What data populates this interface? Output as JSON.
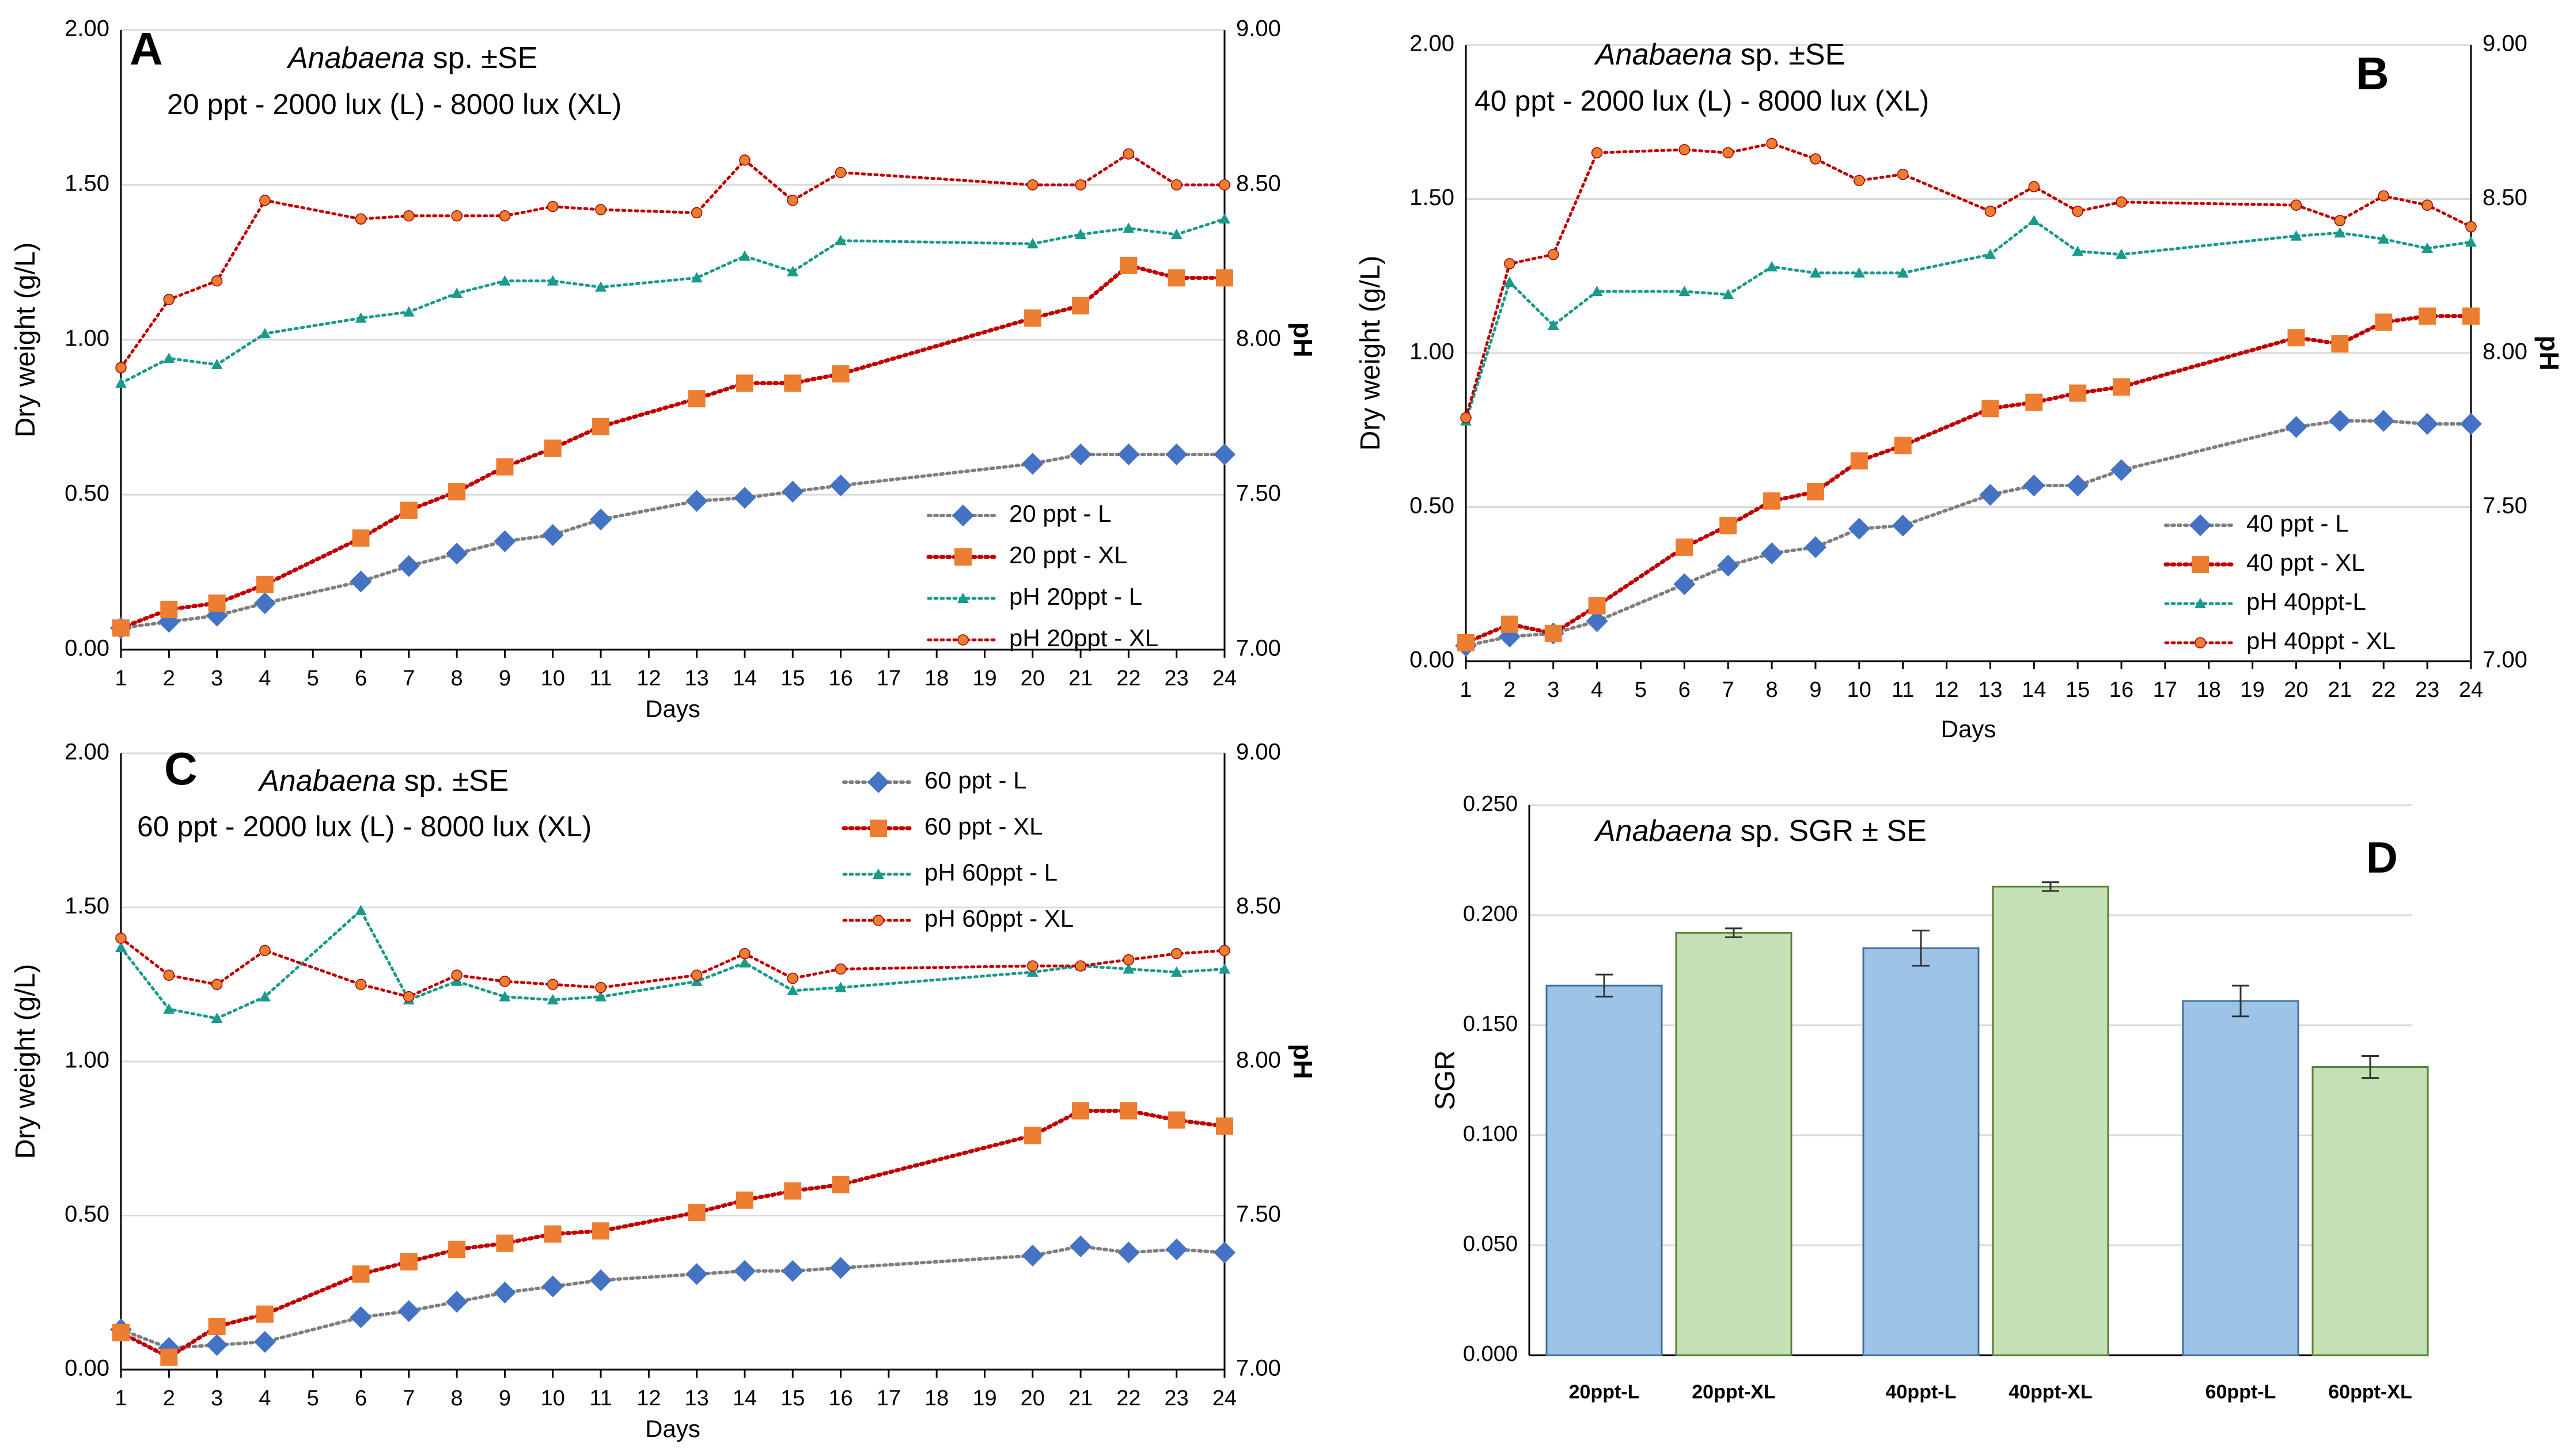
{
  "days": [
    1,
    2,
    3,
    4,
    5,
    6,
    7,
    8,
    9,
    10,
    11,
    12,
    13,
    14,
    15,
    16,
    17,
    18,
    19,
    20,
    21,
    22,
    23,
    24
  ],
  "common": {
    "xlabel": "Days",
    "ylabel_left": "Dry weight (g/L)",
    "ylabel_right": "pH",
    "left_ticks": [
      "0.00",
      "0.50",
      "1.00",
      "1.50",
      "2.00"
    ],
    "right_ticks": [
      "7.00",
      "7.50",
      "8.00",
      "8.50",
      "9.00"
    ],
    "tick_labels": [
      "1",
      "2",
      "3",
      "4",
      "5",
      "6",
      "7",
      "8",
      "9",
      "10",
      "11",
      "12",
      "13",
      "14",
      "15",
      "16",
      "17",
      "18",
      "19",
      "20",
      "21",
      "22",
      "23",
      "24"
    ]
  },
  "colors": {
    "blue": "#4472c4",
    "orange": "#ed7d31",
    "darkred": "#c00000",
    "teal": "#1a9a8a",
    "gray": "#7f7f7f",
    "bar_blue": "#9dc3e6",
    "bar_green": "#c5e0b4",
    "grid": "#d9d9d9"
  },
  "chart_data": [
    {
      "type": "line",
      "letter": "A",
      "title_italic": "Anabaena",
      "title_rest": " sp. ±SE",
      "subtitle": "20 ppt - 2000 lux (L) - 8000 lux (XL)",
      "xlabel": "Days",
      "ylabel": "Dry weight (g/L)",
      "y2label": "pH",
      "ylim": [
        0,
        2
      ],
      "y2lim": [
        7,
        9
      ],
      "series": [
        {
          "name": "20 ppt - L",
          "axis": "left",
          "x": [
            1,
            2,
            3,
            4,
            6,
            7,
            8,
            9,
            10,
            11,
            13,
            14,
            15,
            16,
            20,
            21,
            22,
            23,
            24
          ],
          "values": [
            0.07,
            0.09,
            0.11,
            0.15,
            0.22,
            0.27,
            0.31,
            0.35,
            0.37,
            0.42,
            0.48,
            0.49,
            0.51,
            0.53,
            0.6,
            0.63,
            0.63,
            0.63,
            0.63
          ]
        },
        {
          "name": "20 ppt - XL",
          "axis": "left",
          "x": [
            1,
            2,
            3,
            4,
            6,
            7,
            8,
            9,
            10,
            11,
            13,
            14,
            15,
            16,
            20,
            21,
            22,
            23,
            24
          ],
          "values": [
            0.07,
            0.13,
            0.15,
            0.21,
            0.36,
            0.45,
            0.51,
            0.59,
            0.65,
            0.72,
            0.81,
            0.86,
            0.86,
            0.89,
            1.07,
            1.11,
            1.24,
            1.2,
            1.2
          ]
        },
        {
          "name": "pH 20ppt - L",
          "axis": "right",
          "x": [
            1,
            2,
            3,
            4,
            6,
            7,
            8,
            9,
            10,
            11,
            13,
            14,
            15,
            16,
            20,
            21,
            22,
            23,
            24
          ],
          "values": [
            7.86,
            7.94,
            7.92,
            8.02,
            8.07,
            8.09,
            8.15,
            8.19,
            8.19,
            8.17,
            8.2,
            8.27,
            8.22,
            8.32,
            8.31,
            8.34,
            8.36,
            8.34,
            8.39
          ]
        },
        {
          "name": "pH 20ppt - XL",
          "axis": "right",
          "x": [
            1,
            2,
            3,
            4,
            6,
            7,
            8,
            9,
            10,
            11,
            13,
            14,
            15,
            16,
            20,
            21,
            22,
            23,
            24
          ],
          "values": [
            7.91,
            8.13,
            8.19,
            8.45,
            8.39,
            8.4,
            8.4,
            8.4,
            8.43,
            8.42,
            8.41,
            8.58,
            8.45,
            8.54,
            8.5,
            8.5,
            8.6,
            8.5,
            8.5
          ]
        }
      ]
    },
    {
      "type": "line",
      "letter": "B",
      "title_italic": "Anabaena",
      "title_rest": " sp. ±SE",
      "subtitle": "40 ppt - 2000 lux (L) - 8000 lux (XL)",
      "xlabel": "Days",
      "ylabel": "Dry weight (g/L)",
      "y2label": "pH",
      "ylim": [
        0,
        2
      ],
      "y2lim": [
        7,
        9
      ],
      "series": [
        {
          "name": "40 ppt - L",
          "axis": "left",
          "x": [
            1,
            2,
            3,
            4,
            6,
            7,
            8,
            9,
            10,
            11,
            13,
            14,
            15,
            16,
            20,
            21,
            22,
            23,
            24
          ],
          "values": [
            0.05,
            0.08,
            0.09,
            0.13,
            0.25,
            0.31,
            0.35,
            0.37,
            0.43,
            0.44,
            0.54,
            0.57,
            0.57,
            0.62,
            0.76,
            0.78,
            0.78,
            0.77,
            0.77
          ]
        },
        {
          "name": "40 ppt - XL",
          "axis": "left",
          "x": [
            1,
            2,
            3,
            4,
            6,
            7,
            8,
            9,
            10,
            11,
            13,
            14,
            15,
            16,
            20,
            21,
            22,
            23,
            24
          ],
          "values": [
            0.06,
            0.12,
            0.09,
            0.18,
            0.37,
            0.44,
            0.52,
            0.55,
            0.65,
            0.7,
            0.82,
            0.84,
            0.87,
            0.89,
            1.05,
            1.03,
            1.1,
            1.12,
            1.12
          ]
        },
        {
          "name": "pH 40ppt-L",
          "axis": "right",
          "x": [
            1,
            2,
            3,
            4,
            6,
            7,
            8,
            9,
            10,
            11,
            13,
            14,
            15,
            16,
            20,
            21,
            22,
            23,
            24
          ],
          "values": [
            7.78,
            8.23,
            8.09,
            8.2,
            8.2,
            8.19,
            8.28,
            8.26,
            8.26,
            8.26,
            8.32,
            8.43,
            8.33,
            8.32,
            8.38,
            8.39,
            8.37,
            8.34,
            8.36
          ]
        },
        {
          "name": "pH 40ppt - XL",
          "axis": "right",
          "x": [
            1,
            2,
            3,
            4,
            6,
            7,
            8,
            9,
            10,
            11,
            13,
            14,
            15,
            16,
            20,
            21,
            22,
            23,
            24
          ],
          "values": [
            7.79,
            8.29,
            8.32,
            8.65,
            8.66,
            8.65,
            8.68,
            8.63,
            8.56,
            8.58,
            8.46,
            8.54,
            8.46,
            8.49,
            8.48,
            8.43,
            8.51,
            8.48,
            8.41
          ]
        }
      ]
    },
    {
      "type": "line",
      "letter": "C",
      "title_italic": "Anabaena",
      "title_rest": " sp. ±SE",
      "subtitle": "60 ppt - 2000 lux (L) - 8000 lux (XL)",
      "xlabel": "Days",
      "ylabel": "Dry weight (g/L)",
      "y2label": "pH",
      "ylim": [
        0,
        2
      ],
      "y2lim": [
        7,
        9
      ],
      "series": [
        {
          "name": "60 ppt - L",
          "axis": "left",
          "x": [
            1,
            2,
            3,
            4,
            6,
            7,
            8,
            9,
            10,
            11,
            13,
            14,
            15,
            16,
            20,
            21,
            22,
            23,
            24
          ],
          "values": [
            0.13,
            0.07,
            0.08,
            0.09,
            0.17,
            0.19,
            0.22,
            0.25,
            0.27,
            0.29,
            0.31,
            0.32,
            0.32,
            0.33,
            0.37,
            0.4,
            0.38,
            0.39,
            0.38
          ]
        },
        {
          "name": "60 ppt - XL",
          "axis": "left",
          "x": [
            1,
            2,
            3,
            4,
            6,
            7,
            8,
            9,
            10,
            11,
            13,
            14,
            15,
            16,
            20,
            21,
            22,
            23,
            24
          ],
          "values": [
            0.12,
            0.04,
            0.14,
            0.18,
            0.31,
            0.35,
            0.39,
            0.41,
            0.44,
            0.45,
            0.51,
            0.55,
            0.58,
            0.6,
            0.76,
            0.84,
            0.84,
            0.81,
            0.79
          ]
        },
        {
          "name": "pH 60ppt - L",
          "axis": "right",
          "x": [
            1,
            2,
            3,
            4,
            6,
            7,
            8,
            9,
            10,
            11,
            13,
            14,
            15,
            16,
            20,
            21,
            22,
            23,
            24
          ],
          "values": [
            8.37,
            8.17,
            8.14,
            8.21,
            8.49,
            8.2,
            8.26,
            8.21,
            8.2,
            8.21,
            8.26,
            8.32,
            8.23,
            8.24,
            8.29,
            8.31,
            8.3,
            8.29,
            8.3
          ]
        },
        {
          "name": "pH 60ppt - XL",
          "axis": "right",
          "x": [
            1,
            2,
            3,
            4,
            6,
            7,
            8,
            9,
            10,
            11,
            13,
            14,
            15,
            16,
            20,
            21,
            22,
            23,
            24
          ],
          "values": [
            8.4,
            8.28,
            8.25,
            8.36,
            8.25,
            8.21,
            8.28,
            8.26,
            8.25,
            8.24,
            8.28,
            8.35,
            8.27,
            8.3,
            8.31,
            8.31,
            8.33,
            8.35,
            8.36
          ]
        }
      ]
    },
    {
      "type": "bar",
      "letter": "D",
      "title_italic": "Anabaena",
      "title_rest": " sp. SGR ± SE",
      "ylabel": "SGR",
      "ylim": [
        0,
        0.25
      ],
      "yticks": [
        "0.000",
        "0.050",
        "0.100",
        "0.150",
        "0.200",
        "0.250"
      ],
      "categories": [
        "20ppt-L",
        "20ppt-XL",
        "40ppt-L",
        "40ppt-XL",
        "60ppt-L",
        "60ppt-XL"
      ],
      "values": [
        0.168,
        0.192,
        0.185,
        0.213,
        0.161,
        0.131
      ],
      "errors": [
        0.005,
        0.002,
        0.008,
        0.002,
        0.007,
        0.005
      ]
    }
  ]
}
